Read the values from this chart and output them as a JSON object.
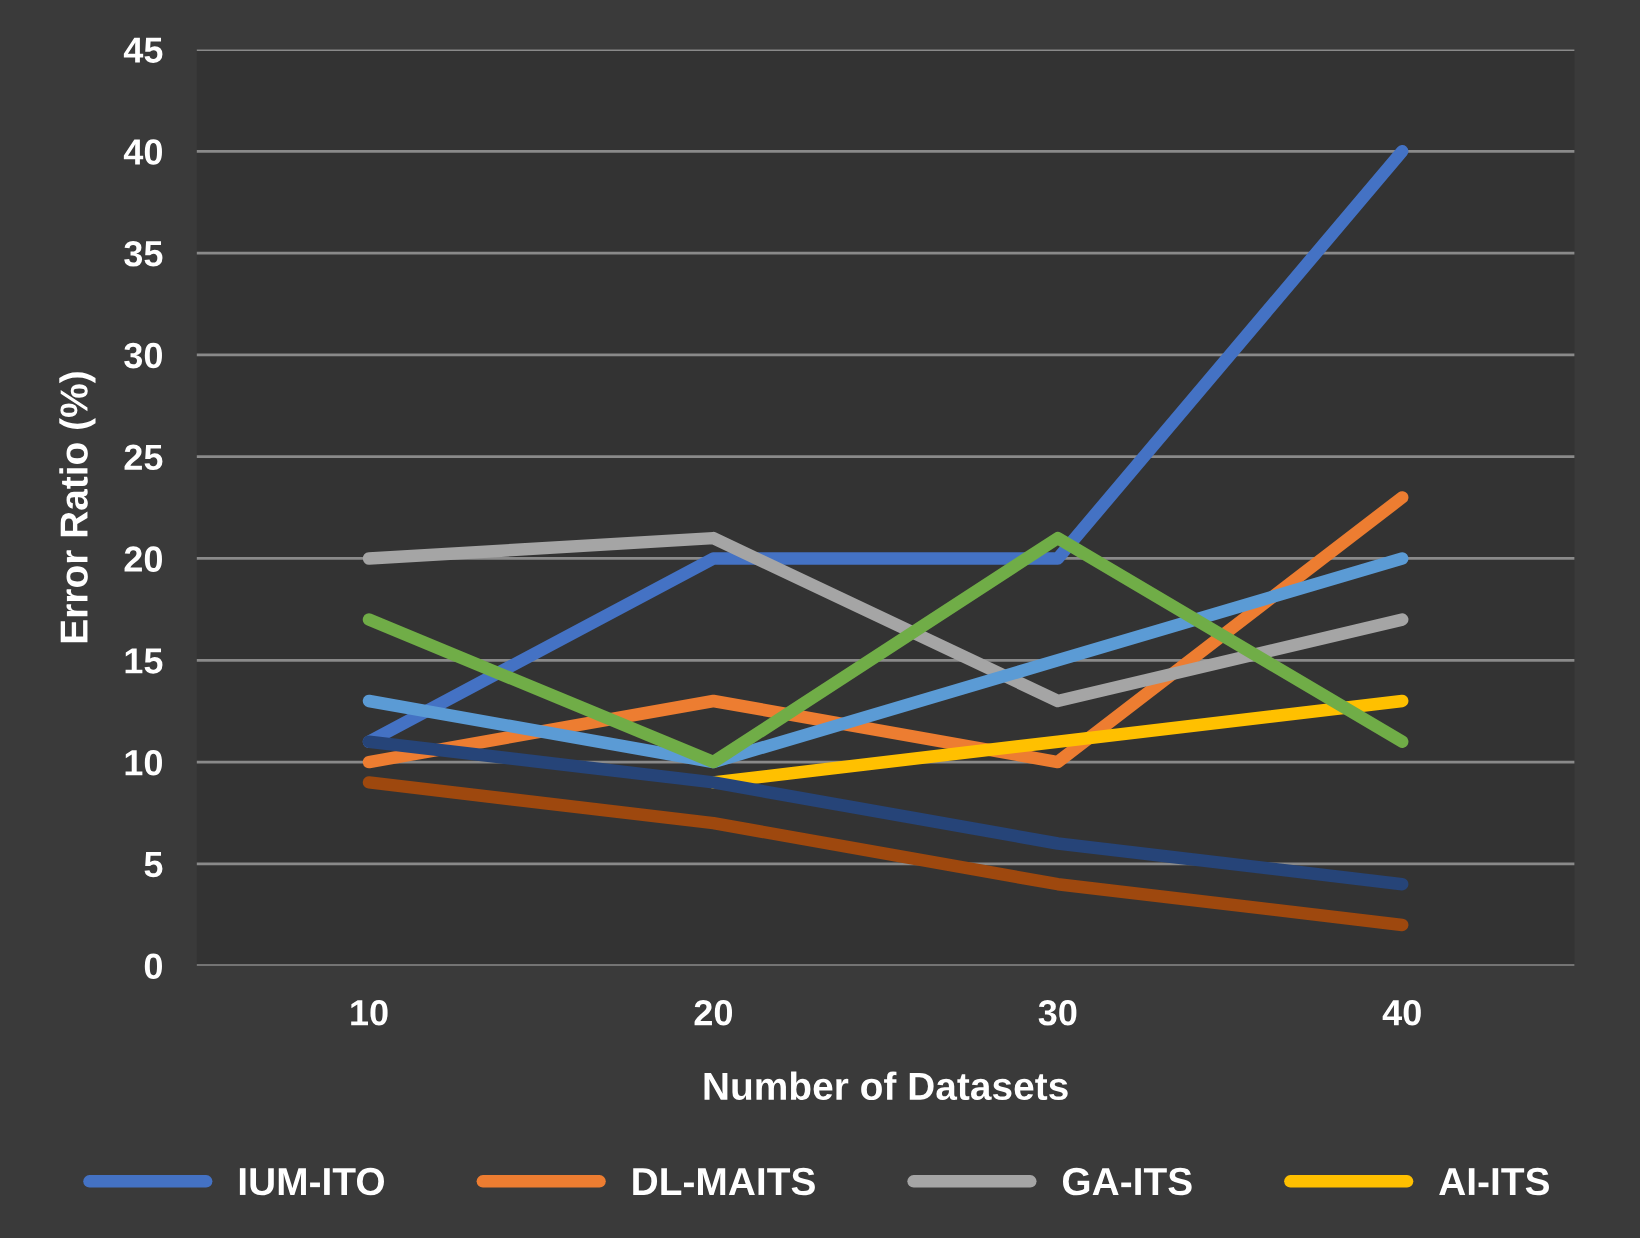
{
  "chart_data": {
    "type": "line",
    "xlabel": "Number of Datasets",
    "ylabel": "Error Ratio (%)",
    "categories": [
      "10",
      "20",
      "30",
      "40"
    ],
    "series": [
      {
        "name": "IUM-ITO",
        "color": "#4472c4",
        "values": [
          11,
          20,
          20,
          40
        ]
      },
      {
        "name": "DL-MAITS",
        "color": "#ed7d31",
        "values": [
          10,
          13,
          10,
          23
        ]
      },
      {
        "name": "GA-ITS",
        "color": "#a5a5a5",
        "values": [
          20,
          21,
          13,
          17
        ]
      },
      {
        "name": "AI-ITS",
        "color": "#ffc000",
        "values": [
          null,
          9,
          11,
          13
        ]
      },
      {
        "color": "#5b9bd5",
        "values": [
          13,
          10,
          15,
          20
        ]
      },
      {
        "color": "#70ad47",
        "values": [
          17,
          10,
          21,
          11
        ]
      },
      {
        "color": "#264478",
        "values": [
          11,
          9,
          6,
          4
        ]
      },
      {
        "color": "#9e480e",
        "values": [
          9,
          7,
          4,
          2
        ]
      }
    ],
    "ylim": [
      0,
      45
    ],
    "yticks": [
      0,
      5,
      10,
      15,
      20,
      25,
      30,
      35,
      40,
      45
    ],
    "grid": "y",
    "legend": "bottom",
    "marker": "none",
    "line_style": "solid"
  }
}
